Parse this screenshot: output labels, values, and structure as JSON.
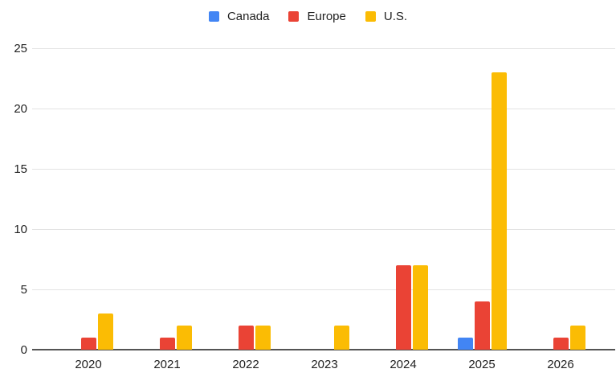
{
  "colors": {
    "background": "#ffffff",
    "gridline": "#e3e3e3",
    "baseline": "#545454",
    "text": "#1f1f1f"
  },
  "chart_data": {
    "type": "bar",
    "title": "",
    "xlabel": "",
    "ylabel": "",
    "categories": [
      "2020",
      "2021",
      "2022",
      "2023",
      "2024",
      "2025",
      "2026"
    ],
    "series": [
      {
        "name": "Canada",
        "color": "#4285F4",
        "values": [
          0,
          0,
          0,
          0,
          0,
          1,
          0
        ]
      },
      {
        "name": "Europe",
        "color": "#EA4335",
        "values": [
          1,
          1,
          2,
          0,
          7,
          4,
          1
        ]
      },
      {
        "name": "U.S.",
        "color": "#FBBC04",
        "values": [
          3,
          2,
          2,
          2,
          7,
          23,
          2
        ]
      }
    ],
    "ylim": [
      0,
      25
    ],
    "yticks": [
      0,
      5,
      10,
      15,
      20,
      25
    ],
    "grid": true,
    "legend_position": "top"
  }
}
